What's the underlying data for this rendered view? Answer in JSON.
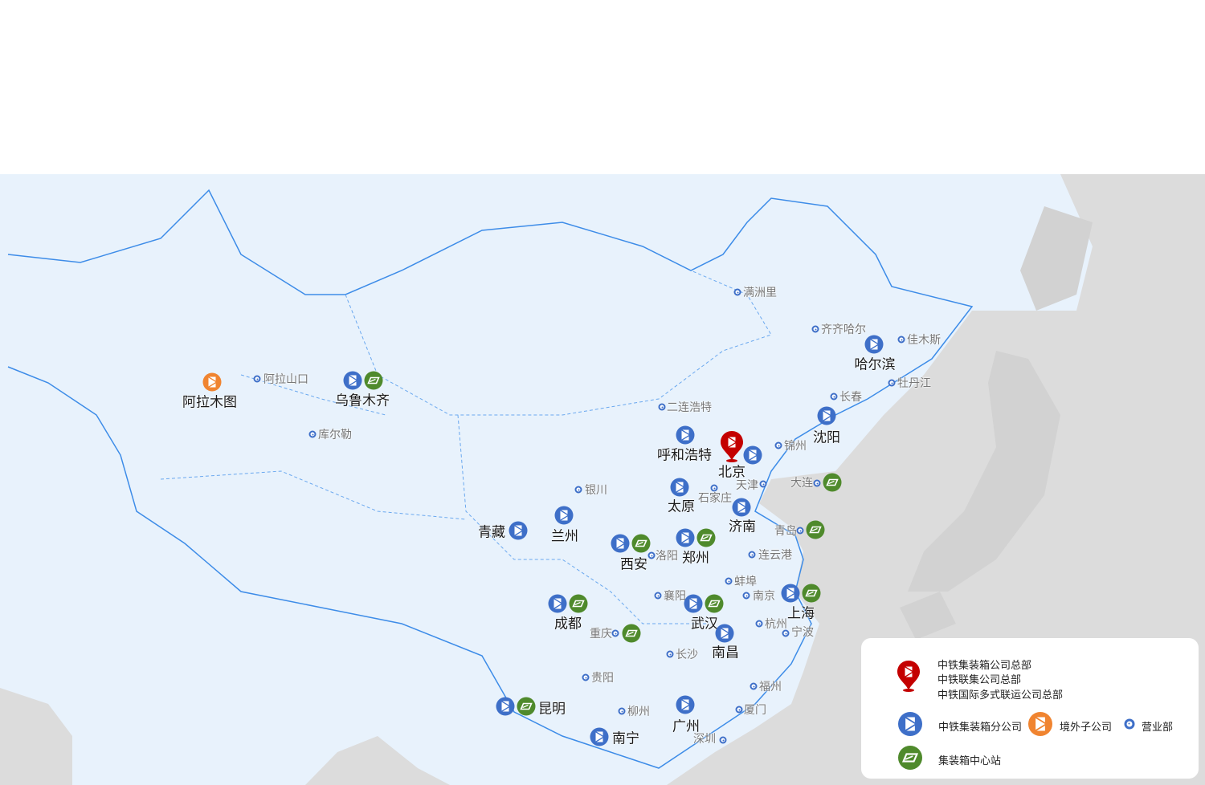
{
  "colors": {
    "branch": "#3e6fc8",
    "center": "#4f8a2c",
    "overseas": "#f08430",
    "hq": "#c40000",
    "sales_office": "#3e6fc8",
    "land": "#e8f2fc",
    "foreign": "#dcdcdc",
    "border": "#3d8ce8"
  },
  "cities": [
    {
      "name": "阿拉木图",
      "type": "overseas"
    },
    {
      "name": "阿拉山口",
      "type": "sales_office"
    },
    {
      "name": "乌鲁木齐",
      "type": "branch+center"
    },
    {
      "name": "库尔勒",
      "type": "sales_office"
    },
    {
      "name": "满洲里",
      "type": "sales_office"
    },
    {
      "name": "齐齐哈尔",
      "type": "sales_office"
    },
    {
      "name": "佳木斯",
      "type": "sales_office"
    },
    {
      "name": "哈尔滨",
      "type": "branch"
    },
    {
      "name": "牡丹江",
      "type": "sales_office"
    },
    {
      "name": "长春",
      "type": "sales_office"
    },
    {
      "name": "沈阳",
      "type": "branch"
    },
    {
      "name": "二连浩特",
      "type": "sales_office"
    },
    {
      "name": "呼和浩特",
      "type": "branch"
    },
    {
      "name": "北京",
      "type": "hq+branch"
    },
    {
      "name": "锦州",
      "type": "sales_office"
    },
    {
      "name": "天津",
      "type": "sales_office"
    },
    {
      "name": "大连",
      "type": "sales_office+center"
    },
    {
      "name": "银川",
      "type": "sales_office"
    },
    {
      "name": "太原",
      "type": "branch"
    },
    {
      "name": "石家庄",
      "type": "sales_office"
    },
    {
      "name": "济南",
      "type": "branch"
    },
    {
      "name": "青岛",
      "type": "sales_office+center"
    },
    {
      "name": "青藏",
      "type": "branch"
    },
    {
      "name": "兰州",
      "type": "branch"
    },
    {
      "name": "西安",
      "type": "branch+center"
    },
    {
      "name": "洛阳",
      "type": "sales_office"
    },
    {
      "name": "郑州",
      "type": "branch+center"
    },
    {
      "name": "连云港",
      "type": "sales_office"
    },
    {
      "name": "蚌埠",
      "type": "sales_office"
    },
    {
      "name": "襄阳",
      "type": "sales_office"
    },
    {
      "name": "南京",
      "type": "sales_office"
    },
    {
      "name": "上海",
      "type": "branch+center"
    },
    {
      "name": "成都",
      "type": "branch+center"
    },
    {
      "name": "武汉",
      "type": "branch+center"
    },
    {
      "name": "杭州",
      "type": "sales_office"
    },
    {
      "name": "宁波",
      "type": "sales_office"
    },
    {
      "name": "重庆",
      "type": "sales_office+center"
    },
    {
      "name": "南昌",
      "type": "branch"
    },
    {
      "name": "长沙",
      "type": "sales_office"
    },
    {
      "name": "贵阳",
      "type": "sales_office"
    },
    {
      "name": "福州",
      "type": "sales_office"
    },
    {
      "name": "昆明",
      "type": "branch+center"
    },
    {
      "name": "柳州",
      "type": "sales_office"
    },
    {
      "name": "厦门",
      "type": "sales_office"
    },
    {
      "name": "广州",
      "type": "branch"
    },
    {
      "name": "南宁",
      "type": "branch"
    },
    {
      "name": "深圳",
      "type": "sales_office"
    }
  ],
  "legend": {
    "hq_lines": [
      "中铁集装箱公司总部",
      "中铁联集公司总部",
      "中铁国际多式联运公司总部"
    ],
    "branch": "中铁集装箱分公司",
    "overseas": "境外子公司",
    "sales_office": "营业部",
    "center": "集装箱中心站"
  }
}
